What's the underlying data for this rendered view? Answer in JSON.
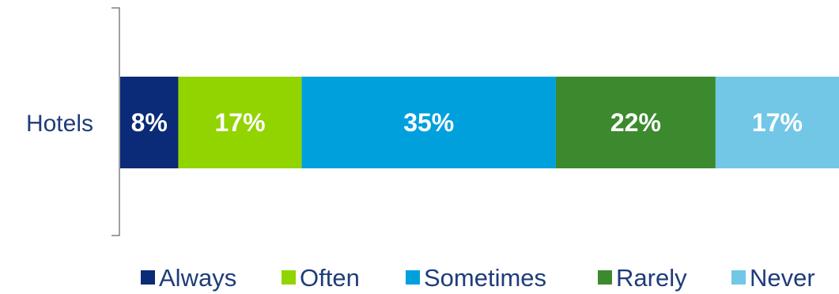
{
  "chart_data": {
    "type": "bar",
    "orientation": "horizontal",
    "stacked": true,
    "categories": [
      "Hotels"
    ],
    "series": [
      {
        "name": "Always",
        "values": [
          8
        ],
        "label": "8%",
        "color": "#0b2a78"
      },
      {
        "name": "Often",
        "values": [
          17
        ],
        "label": "17%",
        "color": "#92d400"
      },
      {
        "name": "Sometimes",
        "values": [
          35
        ],
        "label": "35%",
        "color": "#00a0dd"
      },
      {
        "name": "Rarely",
        "values": [
          22
        ],
        "label": "22%",
        "color": "#3c8a2e"
      },
      {
        "name": "Never",
        "values": [
          17
        ],
        "label": "17%",
        "color": "#72c7e7"
      }
    ],
    "xlim": [
      0,
      99
    ],
    "legend_position": "bottom",
    "grid": false
  }
}
